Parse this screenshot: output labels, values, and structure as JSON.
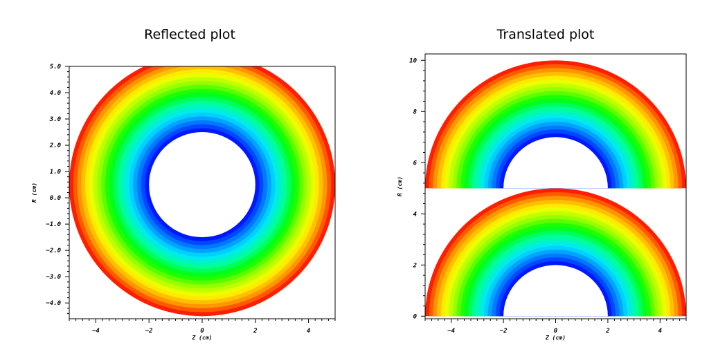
{
  "chart_data": [
    {
      "type": "contour",
      "title": "Reflected plot",
      "xlabel": "Z (cm)",
      "ylabel": "R (cm)",
      "xlim": [
        -5,
        5
      ],
      "ylim": [
        -4.6,
        5.0
      ],
      "xticks": [
        -4,
        -2,
        0,
        2,
        4
      ],
      "xtick_labels": [
        "−4",
        "−2",
        "0",
        "2",
        "4"
      ],
      "yticks": [
        -4,
        -3,
        -2,
        -1,
        0,
        1,
        2,
        3,
        4,
        5
      ],
      "ytick_labels": [
        "−4.0",
        "−3.0",
        "−2.0",
        "−1.0",
        "0.0",
        "1.0",
        "2.0",
        "3.0",
        "4.0",
        "5.0"
      ],
      "rings": [
        {
          "center": [
            0,
            0.5
          ],
          "inner_radius": 2.0,
          "outer_radius": 5.0
        },
        {
          "center": [
            0,
            0.5
          ],
          "inner_radius": 2.0,
          "outer_radius": 5.0,
          "reflected": true
        }
      ],
      "colormap": [
        "#0000ff",
        "#0078ff",
        "#00e6ff",
        "#00ff96",
        "#00ff00",
        "#96ff00",
        "#ffff00",
        "#ff9600",
        "#ff0000"
      ],
      "levels": 20
    },
    {
      "type": "contour",
      "title": "Translated plot",
      "xlabel": "Z (cm)",
      "ylabel": "R (cm)",
      "xlim": [
        -5,
        5
      ],
      "ylim": [
        -0.1,
        10.25
      ],
      "xticks": [
        -4,
        -2,
        0,
        2,
        4
      ],
      "xtick_labels": [
        "−4",
        "−2",
        "0",
        "2",
        "4"
      ],
      "yticks": [
        0,
        2,
        4,
        6,
        8,
        10
      ],
      "ytick_labels": [
        "0",
        "2",
        "4",
        "6",
        "8",
        "10"
      ],
      "rings": [
        {
          "center": [
            0,
            0
          ],
          "inner_radius": 2.0,
          "outer_radius": 5.0
        },
        {
          "center": [
            0,
            5
          ],
          "inner_radius": 2.0,
          "outer_radius": 5.0
        }
      ],
      "colormap": [
        "#0000ff",
        "#0078ff",
        "#00e6ff",
        "#00ff96",
        "#00ff00",
        "#96ff00",
        "#ffff00",
        "#ff9600",
        "#ff0000"
      ],
      "levels": 20
    }
  ]
}
